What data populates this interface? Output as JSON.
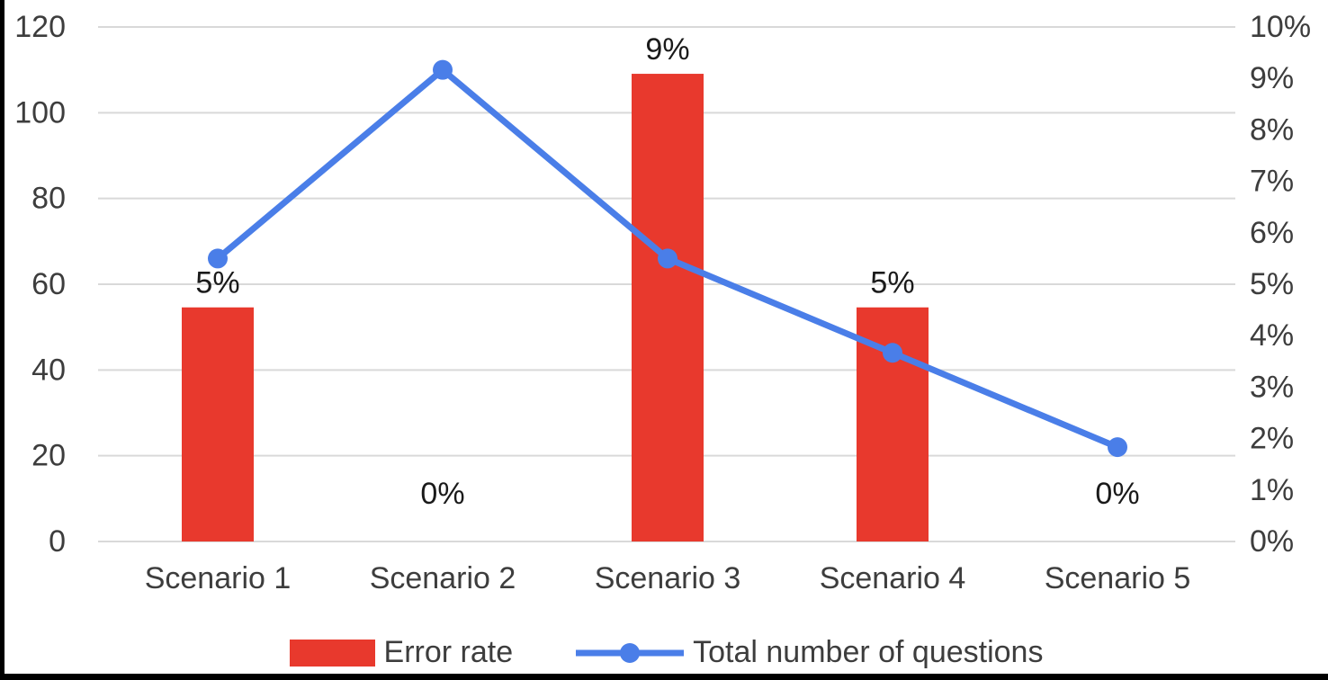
{
  "colors": {
    "bar": "#e8392d",
    "line": "#4a7ee8",
    "gridline": "#d9d9d9",
    "axis_text": "#3d3d3d",
    "data_label": "#1a1a1a"
  },
  "chart_data": {
    "type": "combo",
    "categories": [
      "Scenario 1",
      "Scenario 2",
      "Scenario 3",
      "Scenario 4",
      "Scenario 5"
    ],
    "series": [
      {
        "name": "Error rate",
        "type": "bar",
        "axis": "right",
        "values": [
          4.55,
          0,
          9.09,
          4.55,
          0
        ],
        "labels": [
          "5%",
          "0%",
          "9%",
          "5%",
          "0%"
        ]
      },
      {
        "name": "Total number of questions",
        "type": "line",
        "axis": "left",
        "values": [
          66,
          110,
          66,
          44,
          22
        ]
      }
    ],
    "left_axis": {
      "min": 0,
      "max": 120,
      "step": 20,
      "ticks": [
        "0",
        "20",
        "40",
        "60",
        "80",
        "100",
        "120"
      ]
    },
    "right_axis": {
      "min": 0,
      "max": 10,
      "step": 1,
      "ticks": [
        "0%",
        "1%",
        "2%",
        "3%",
        "4%",
        "5%",
        "6%",
        "7%",
        "8%",
        "9%",
        "10%"
      ]
    },
    "grid": true,
    "legend_position": "bottom",
    "title": ""
  },
  "legend": {
    "items": [
      {
        "label": "Error rate",
        "type": "bar"
      },
      {
        "label": "Total number of questions",
        "type": "line"
      }
    ]
  }
}
